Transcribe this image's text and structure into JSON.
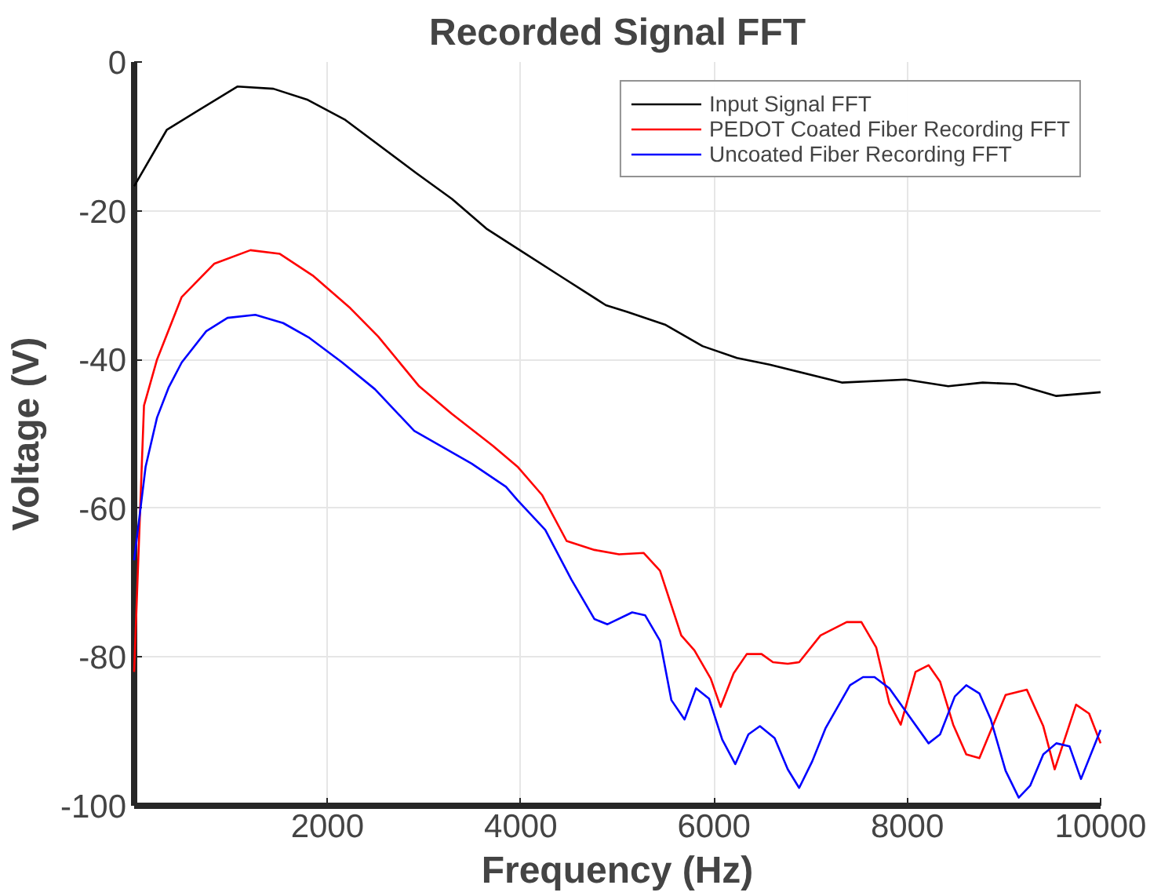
{
  "chart_data": {
    "type": "line",
    "title": "Recorded Signal FFT",
    "xlabel": "Frequency (Hz)",
    "ylabel": "Voltage (V)",
    "xlim": [
      0,
      10000
    ],
    "xticks": [
      2000,
      4000,
      6000,
      8000,
      10000
    ],
    "ylim": [
      -100,
      0
    ],
    "yticks": [
      -100,
      -80,
      -60,
      -40,
      -20,
      0
    ],
    "grid": true,
    "legend": "top right",
    "line_style": "solid",
    "marker": "none",
    "series": [
      {
        "name": "Input Signal FFT",
        "color": "#000000",
        "x": [
          0,
          339,
          1068,
          1441,
          1797,
          2186,
          2915,
          3288,
          3644,
          3966,
          4424,
          4881,
          5102,
          5492,
          5881,
          6237,
          6576,
          7322,
          7983,
          8424,
          8780,
          9119,
          9542,
          10000
        ],
        "values": [
          -16.7,
          -9.1,
          -3.3,
          -3.6,
          -5.1,
          -7.8,
          -14.9,
          -18.4,
          -22.4,
          -25.1,
          -28.9,
          -32.7,
          -33.6,
          -35.3,
          -38.2,
          -39.8,
          -40.7,
          -43.1,
          -42.7,
          -43.6,
          -43.1,
          -43.3,
          -44.9,
          -44.4
        ]
      },
      {
        "name": "PEDOT Coated Fiber Recording FFT",
        "color": "#ff0000",
        "x": [
          0,
          102,
          237,
          492,
          831,
          1203,
          1508,
          1847,
          2237,
          2525,
          2949,
          3288,
          3712,
          3966,
          4220,
          4475,
          4763,
          5017,
          5271,
          5441,
          5661,
          5797,
          5966,
          6068,
          6203,
          6339,
          6492,
          6610,
          6763,
          6881,
          7102,
          7373,
          7525,
          7678,
          7814,
          7932,
          8085,
          8220,
          8339,
          8475,
          8610,
          8746,
          9017,
          9237,
          9407,
          9525,
          9746,
          9881,
          10000
        ],
        "values": [
          -82,
          -46.2,
          -40,
          -31.6,
          -27.1,
          -25.3,
          -25.8,
          -28.7,
          -33.1,
          -36.9,
          -43.6,
          -47.3,
          -51.6,
          -54.4,
          -58.2,
          -64.4,
          -65.6,
          -66.2,
          -66,
          -68.4,
          -77.1,
          -79.1,
          -82.9,
          -86.7,
          -82.2,
          -79.6,
          -79.6,
          -80.7,
          -80.9,
          -80.7,
          -77.1,
          -75.3,
          -75.3,
          -78.7,
          -86.2,
          -89.1,
          -82,
          -81.1,
          -83.3,
          -89.1,
          -93.1,
          -93.6,
          -85.1,
          -84.4,
          -89.3,
          -95.1,
          -86.4,
          -87.6,
          -91.6
        ]
      },
      {
        "name": "Uncoated Fiber Recording FFT",
        "color": "#0000ff",
        "x": [
          0,
          119,
          237,
          356,
          492,
          746,
          966,
          1254,
          1542,
          1814,
          2153,
          2492,
          2898,
          3492,
          3847,
          3966,
          4254,
          4525,
          4763,
          4898,
          5153,
          5288,
          5441,
          5559,
          5695,
          5814,
          5949,
          6085,
          6220,
          6356,
          6475,
          6627,
          6763,
          6881,
          7017,
          7153,
          7407,
          7542,
          7661,
          7814,
          7983,
          8220,
          8339,
          8492,
          8610,
          8746,
          8864,
          9017,
          9153,
          9271,
          9407,
          9542,
          9678,
          9797,
          10000
        ],
        "values": [
          -67,
          -54.4,
          -47.8,
          -43.8,
          -40.4,
          -36.2,
          -34.4,
          -34,
          -35.1,
          -37.1,
          -40.4,
          -44,
          -49.6,
          -54,
          -57.1,
          -58.9,
          -62.9,
          -69.6,
          -74.9,
          -75.6,
          -74,
          -74.4,
          -77.8,
          -85.8,
          -88.4,
          -84.2,
          -85.6,
          -91.1,
          -94.4,
          -90.4,
          -89.3,
          -90.9,
          -95.1,
          -97.6,
          -94,
          -89.6,
          -83.8,
          -82.7,
          -82.7,
          -84.2,
          -87.3,
          -91.6,
          -90.4,
          -85.3,
          -83.8,
          -84.9,
          -88.4,
          -95.3,
          -98.9,
          -97.3,
          -93.1,
          -91.6,
          -92,
          -96.4,
          -89.8
        ]
      }
    ]
  }
}
